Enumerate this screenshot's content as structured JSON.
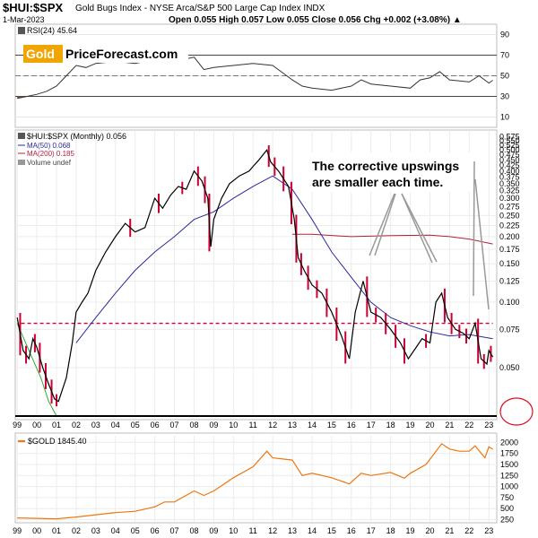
{
  "header": {
    "symbol": "$HUI:$SPX",
    "description": "Gold Bugs Index - NYSE Arca/S&P 500 Large Cap Index  INDX",
    "date": "1-Mar-2023",
    "ohlc": "Open 0.055  High 0.057  Low 0.055  Close 0.056  Chg +0.002 (+3.08%) ▲"
  },
  "watermark": {
    "word1": "Gold",
    "word2": "PriceForecast.com"
  },
  "annotation": {
    "line1": "The corrective upswings",
    "line2": "are smaller each time."
  },
  "colors": {
    "price": "#000000",
    "down_bar": "#cc0033",
    "ma50": "#2a2a9c",
    "ma200": "#b0213b",
    "gold": "#ee7711",
    "rsi": "#333333",
    "support": "#cc0033",
    "circle": "#dd1122"
  },
  "chart_data": [
    {
      "type": "line",
      "panel": "RSI",
      "legend": "RSI(24) 45.64",
      "yticks": [
        10,
        30,
        50,
        70,
        90
      ],
      "ylim": [
        0,
        100
      ],
      "reference_lines": [
        30,
        50,
        70
      ],
      "x": [
        1999.0,
        1999.5,
        2000.0,
        2000.5,
        2001.0,
        2001.5,
        2002.0,
        2002.5,
        2003.0,
        2004.0,
        2005.0,
        2006.0,
        2007.0,
        2008.0,
        2008.5,
        2009.0,
        2010.0,
        2011.0,
        2012.0,
        2013.0,
        2013.5,
        2014.0,
        2015.0,
        2016.0,
        2016.5,
        2017.0,
        2018.0,
        2019.0,
        2019.5,
        2020.0,
        2020.5,
        2021.0,
        2022.0,
        2022.5,
        2023.0,
        2023.2
      ],
      "values": [
        28,
        30,
        32,
        35,
        40,
        50,
        60,
        58,
        62,
        64,
        62,
        66,
        64,
        68,
        56,
        58,
        60,
        62,
        60,
        46,
        40,
        38,
        36,
        40,
        46,
        42,
        40,
        38,
        46,
        48,
        54,
        46,
        44,
        50,
        43,
        45.64
      ]
    },
    {
      "type": "line",
      "panel": "HUI:SPX",
      "scale": "log",
      "legend": [
        "$HUI:$SPX (Monthly) 0.056",
        "MA(50) 0.068",
        "MA(200) 0.185",
        "Volume undef"
      ],
      "yticks": [
        0.05,
        0.075,
        0.1,
        0.125,
        0.15,
        0.175,
        0.2,
        0.225,
        0.25,
        0.275,
        0.3,
        0.325,
        0.35,
        0.375,
        0.4,
        0.425,
        0.45,
        0.475,
        0.5,
        0.525,
        0.55,
        0.575
      ],
      "ytick_labels": [
        "0.050",
        "0.075",
        "0.100",
        "0.125",
        "0.150",
        "0.175",
        "0.200",
        "0.225",
        "0.250",
        "0.275",
        "0.300",
        "0.325",
        "0.350",
        "0.375",
        "0.400",
        "0.425",
        "0.450",
        "0.475",
        "0.500",
        "0.525",
        "0.550",
        "0.575"
      ],
      "ylim": [
        0.03,
        0.6
      ],
      "xlim": [
        1998.9,
        2023.4
      ],
      "xticks": [
        "99",
        "00",
        "01",
        "02",
        "03",
        "04",
        "05",
        "06",
        "07",
        "08",
        "09",
        "10",
        "11",
        "12",
        "13",
        "14",
        "15",
        "16",
        "17",
        "18",
        "19",
        "20",
        "21",
        "22",
        "23"
      ],
      "series": [
        {
          "name": "$HUI:$SPX (Monthly) 0.056",
          "x": [
            1999.0,
            1999.3,
            1999.6,
            1999.8,
            2000.0,
            2000.3,
            2000.6,
            2000.9,
            2001.1,
            2001.5,
            2001.8,
            2002.0,
            2002.3,
            2002.6,
            2003.0,
            2003.5,
            2004.0,
            2004.5,
            2005.0,
            2005.5,
            2006.0,
            2006.4,
            2006.8,
            2007.2,
            2007.6,
            2008.0,
            2008.4,
            2008.7,
            2008.85,
            2009.0,
            2009.4,
            2009.8,
            2010.3,
            2010.8,
            2011.0,
            2011.3,
            2011.7,
            2011.9,
            2012.3,
            2012.8,
            2013.1,
            2013.3,
            2013.6,
            2014.0,
            2014.5,
            2015.0,
            2015.5,
            2015.9,
            2016.2,
            2016.6,
            2017.0,
            2017.5,
            2018.0,
            2018.5,
            2018.9,
            2019.3,
            2019.6,
            2020.0,
            2020.3,
            2020.6,
            2020.9,
            2021.3,
            2021.7,
            2022.0,
            2022.3,
            2022.6,
            2022.9,
            2023.0,
            2023.2
          ],
          "values": [
            0.085,
            0.06,
            0.055,
            0.068,
            0.062,
            0.05,
            0.042,
            0.036,
            0.035,
            0.045,
            0.065,
            0.09,
            0.1,
            0.11,
            0.14,
            0.17,
            0.2,
            0.23,
            0.21,
            0.22,
            0.3,
            0.27,
            0.31,
            0.34,
            0.33,
            0.4,
            0.36,
            0.3,
            0.18,
            0.24,
            0.3,
            0.35,
            0.38,
            0.4,
            0.42,
            0.45,
            0.5,
            0.44,
            0.4,
            0.34,
            0.24,
            0.16,
            0.14,
            0.12,
            0.11,
            0.09,
            0.07,
            0.055,
            0.09,
            0.125,
            0.09,
            0.085,
            0.075,
            0.065,
            0.055,
            0.062,
            0.068,
            0.065,
            0.1,
            0.11,
            0.085,
            0.075,
            0.072,
            0.068,
            0.08,
            0.055,
            0.052,
            0.06,
            0.056
          ]
        },
        {
          "name": "MA(50) 0.068",
          "x": [
            2002.0,
            2003.0,
            2004.0,
            2005.0,
            2006.0,
            2007.0,
            2008.0,
            2009.0,
            2010.0,
            2011.0,
            2012.0,
            2013.0,
            2014.0,
            2015.0,
            2016.0,
            2017.0,
            2018.0,
            2019.0,
            2020.0,
            2021.0,
            2022.0,
            2023.2
          ],
          "values": [
            0.065,
            0.085,
            0.11,
            0.14,
            0.17,
            0.2,
            0.24,
            0.26,
            0.3,
            0.34,
            0.38,
            0.33,
            0.24,
            0.17,
            0.13,
            0.1,
            0.085,
            0.078,
            0.073,
            0.07,
            0.071,
            0.068
          ]
        },
        {
          "name": "MA(200) 0.185",
          "x": [
            2013.0,
            2014.0,
            2016.0,
            2018.0,
            2020.0,
            2021.0,
            2022.0,
            2023.2
          ],
          "values": [
            0.205,
            0.205,
            0.2,
            0.202,
            0.203,
            0.2,
            0.195,
            0.185
          ]
        },
        {
          "name": "early support line",
          "x": [
            1999.0,
            1999.6,
            2000.2,
            2000.6,
            2001.0
          ],
          "values": [
            0.08,
            0.06,
            0.045,
            0.035,
            0.03
          ]
        }
      ],
      "support_level": 0.08
    },
    {
      "type": "line",
      "panel": "GOLD",
      "legend": "$GOLD 1845.40",
      "yticks": [
        250,
        500,
        750,
        1000,
        1250,
        1500,
        1750,
        2000
      ],
      "ylim": [
        200,
        2150
      ],
      "x": [
        1999.0,
        2000.0,
        2001.0,
        2002.0,
        2003.0,
        2004.0,
        2005.0,
        2006.0,
        2006.5,
        2007.0,
        2008.0,
        2008.5,
        2009.0,
        2010.0,
        2011.0,
        2011.7,
        2012.0,
        2013.0,
        2013.5,
        2014.0,
        2015.0,
        2015.9,
        2016.5,
        2017.0,
        2018.0,
        2018.7,
        2019.0,
        2019.8,
        2020.6,
        2021.0,
        2021.5,
        2022.0,
        2022.3,
        2022.8,
        2023.0,
        2023.2
      ],
      "values": [
        290,
        280,
        270,
        310,
        360,
        410,
        440,
        540,
        650,
        650,
        900,
        800,
        900,
        1200,
        1450,
        1800,
        1650,
        1600,
        1250,
        1300,
        1200,
        1060,
        1300,
        1250,
        1320,
        1190,
        1300,
        1500,
        1970,
        1850,
        1800,
        1800,
        1920,
        1650,
        1900,
        1845.4
      ]
    }
  ]
}
